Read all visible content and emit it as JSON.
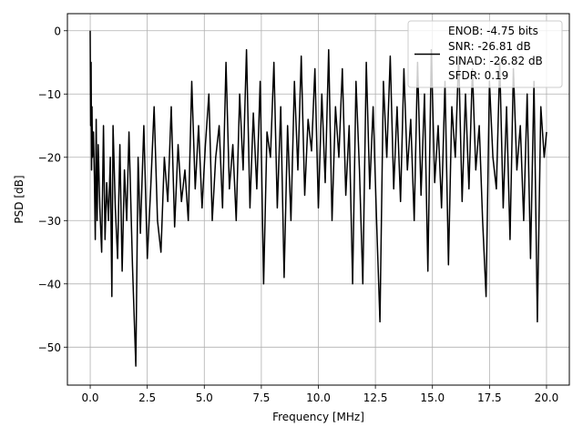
{
  "chart_data": {
    "type": "line",
    "title": "",
    "xlabel": "Frequency [MHz]",
    "ylabel": "PSD [dB]",
    "xlim": [
      -1.0,
      21.0
    ],
    "ylim": [
      -56.0,
      2.7
    ],
    "xticks": [
      {
        "value": 0.0,
        "label": "0.0"
      },
      {
        "value": 2.5,
        "label": "2.5"
      },
      {
        "value": 5.0,
        "label": "5.0"
      },
      {
        "value": 7.5,
        "label": "7.5"
      },
      {
        "value": 10.0,
        "label": "10.0"
      },
      {
        "value": 12.5,
        "label": "12.5"
      },
      {
        "value": 15.0,
        "label": "15.0"
      },
      {
        "value": 17.5,
        "label": "17.5"
      },
      {
        "value": 20.0,
        "label": "20.0"
      }
    ],
    "yticks": [
      {
        "value": 0,
        "label": "0"
      },
      {
        "value": -10,
        "label": "−10"
      },
      {
        "value": -20,
        "label": "−20"
      },
      {
        "value": -30,
        "label": "−30"
      },
      {
        "value": -40,
        "label": "−40"
      },
      {
        "value": -50,
        "label": "−50"
      }
    ],
    "grid": true,
    "legend_position": "top-right",
    "series": [
      {
        "name": "ENOB: -4.75 bits\nSNR: -26.81 dB\nSINAD: -26.82 dB\nSFDR: 0.19",
        "legend_lines": [
          "ENOB: -4.75 bits",
          "SNR: -26.81 dB",
          "SINAD: -26.82 dB",
          "SFDR: 0.19"
        ],
        "color": "#000000",
        "x": [
          0.0,
          0.02,
          0.04,
          0.06,
          0.08,
          0.1,
          0.14,
          0.18,
          0.22,
          0.26,
          0.3,
          0.35,
          0.42,
          0.5,
          0.58,
          0.65,
          0.72,
          0.8,
          0.88,
          0.95,
          1.0,
          1.1,
          1.2,
          1.3,
          1.4,
          1.5,
          1.6,
          1.7,
          1.85,
          2.0,
          2.1,
          2.2,
          2.35,
          2.5,
          2.65,
          2.8,
          2.95,
          3.1,
          3.25,
          3.4,
          3.55,
          3.7,
          3.85,
          4.0,
          4.15,
          4.3,
          4.45,
          4.6,
          4.75,
          4.9,
          5.05,
          5.2,
          5.35,
          5.5,
          5.65,
          5.8,
          5.95,
          6.1,
          6.25,
          6.4,
          6.55,
          6.7,
          6.85,
          7.0,
          7.15,
          7.3,
          7.45,
          7.6,
          7.75,
          7.9,
          8.05,
          8.2,
          8.35,
          8.5,
          8.65,
          8.8,
          8.95,
          9.1,
          9.25,
          9.4,
          9.55,
          9.7,
          9.85,
          10.0,
          10.15,
          10.3,
          10.45,
          10.6,
          10.75,
          10.9,
          11.05,
          11.2,
          11.35,
          11.5,
          11.65,
          11.8,
          11.95,
          12.1,
          12.25,
          12.4,
          12.55,
          12.7,
          12.85,
          13.0,
          13.15,
          13.3,
          13.45,
          13.6,
          13.75,
          13.9,
          14.05,
          14.2,
          14.35,
          14.5,
          14.65,
          14.8,
          14.95,
          15.1,
          15.25,
          15.4,
          15.55,
          15.7,
          15.85,
          16.0,
          16.15,
          16.3,
          16.45,
          16.6,
          16.75,
          16.9,
          17.05,
          17.2,
          17.35,
          17.5,
          17.65,
          17.8,
          17.95,
          18.1,
          18.25,
          18.4,
          18.55,
          18.7,
          18.85,
          19.0,
          19.15,
          19.3,
          19.45,
          19.6,
          19.75,
          19.9,
          20.0
        ],
        "y": [
          0.0,
          -15.0,
          -5.0,
          -22.0,
          -12.0,
          -20.0,
          -16.0,
          -23.0,
          -33.0,
          -14.0,
          -30.0,
          -18.0,
          -28.0,
          -35.0,
          -15.0,
          -33.0,
          -24.0,
          -30.0,
          -20.0,
          -42.0,
          -15.0,
          -28.0,
          -36.0,
          -18.0,
          -38.0,
          -22.0,
          -30.0,
          -16.0,
          -37.0,
          -53.0,
          -20.0,
          -32.0,
          -15.0,
          -36.0,
          -25.0,
          -12.0,
          -30.0,
          -35.0,
          -20.0,
          -27.0,
          -12.0,
          -31.0,
          -18.0,
          -27.0,
          -22.0,
          -30.0,
          -8.0,
          -25.0,
          -15.0,
          -28.0,
          -18.0,
          -10.0,
          -30.0,
          -20.0,
          -15.0,
          -28.0,
          -5.0,
          -25.0,
          -18.0,
          -30.0,
          -10.0,
          -22.0,
          -3.0,
          -28.0,
          -13.0,
          -25.0,
          -8.0,
          -40.0,
          -16.0,
          -20.0,
          -5.0,
          -28.0,
          -12.0,
          -39.0,
          -15.0,
          -30.0,
          -8.0,
          -22.0,
          -4.0,
          -26.0,
          -14.0,
          -19.0,
          -6.0,
          -28.0,
          -10.0,
          -24.0,
          -3.0,
          -30.0,
          -12.0,
          -20.0,
          -6.0,
          -26.0,
          -15.0,
          -40.0,
          -8.0,
          -22.0,
          -40.0,
          -5.0,
          -25.0,
          -12.0,
          -30.0,
          -46.0,
          -8.0,
          -20.0,
          -4.0,
          -25.0,
          -12.0,
          -27.0,
          -6.0,
          -22.0,
          -14.0,
          -30.0,
          -5.0,
          -26.0,
          -10.0,
          -38.0,
          -3.0,
          -24.0,
          -15.0,
          -28.0,
          -8.0,
          -37.0,
          -12.0,
          -20.0,
          -4.0,
          -27.0,
          -10.0,
          -25.0,
          -6.0,
          -22.0,
          -15.0,
          -30.0,
          -42.0,
          -8.0,
          -20.0,
          -25.0,
          -5.0,
          -28.0,
          -12.0,
          -33.0,
          -6.0,
          -22.0,
          -15.0,
          -30.0,
          -10.0,
          -36.0,
          -8.0,
          -46.0,
          -12.0,
          -20.0,
          -16.0
        ]
      }
    ]
  }
}
